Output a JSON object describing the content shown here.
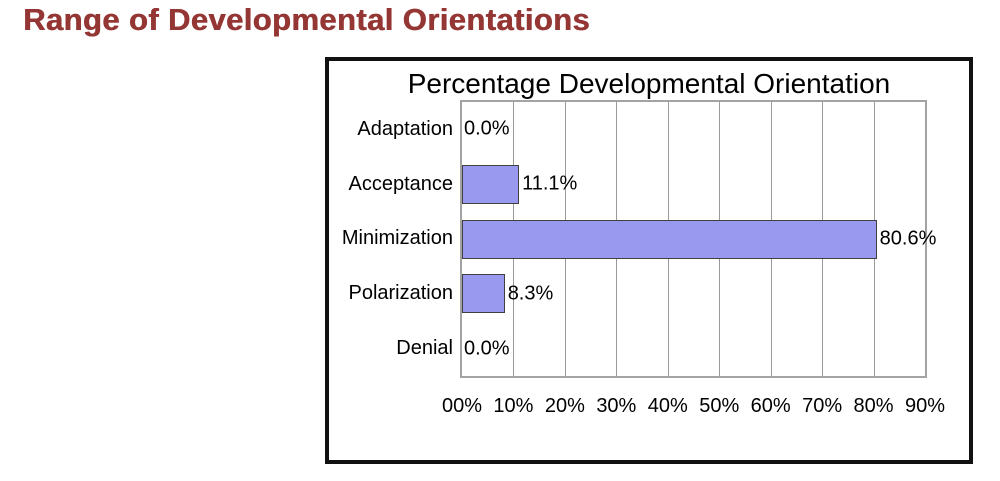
{
  "page": {
    "heading": "Range of Developmental Orientations",
    "heading_color": "#943634",
    "background_color": "#ffffff"
  },
  "chart_data": {
    "type": "bar",
    "orientation": "horizontal",
    "title": "Percentage Developmental Orientation",
    "categories": [
      "Adaptation",
      "Acceptance",
      "Minimization",
      "Polarization",
      "Denial"
    ],
    "values": [
      0.0,
      11.1,
      80.6,
      8.3,
      0.0
    ],
    "value_labels": [
      "0.0%",
      "11.1%",
      "80.6%",
      "8.3%",
      "0.0%"
    ],
    "x_tick_labels": [
      "00%",
      "10%",
      "20%",
      "30%",
      "40%",
      "50%",
      "60%",
      "70%",
      "80%",
      "90%"
    ],
    "xlim": [
      0,
      90
    ],
    "grid": true,
    "legend": "none",
    "bar_color": "#9999F0",
    "bar_border_color": "#404040",
    "gridline_color": "#9a9a9a",
    "plot_border_color": "#a3a3a3",
    "frame_border_color": "#111111",
    "text_color": "#000000"
  }
}
